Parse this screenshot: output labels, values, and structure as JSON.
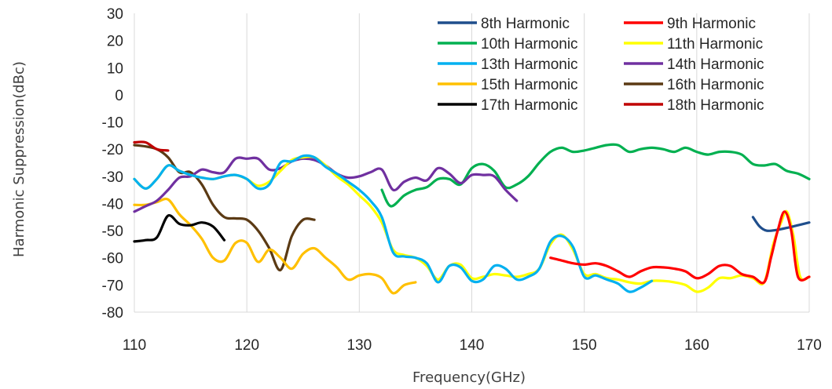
{
  "chart_data": {
    "type": "line",
    "title": "",
    "xlabel": "Frequency(GHz)",
    "ylabel": "Harmonic Suppression(dBc)",
    "xlim": [
      110,
      170
    ],
    "ylim": [
      -80,
      30
    ],
    "xticks": [
      110,
      120,
      130,
      140,
      150,
      160,
      170
    ],
    "yticks": [
      30,
      20,
      10,
      0,
      -10,
      -20,
      -30,
      -40,
      -50,
      -60,
      -70,
      -80
    ],
    "grid": "vertical",
    "legend_position": "top-right",
    "series": [
      {
        "name": "8th Harmonic",
        "color": "#1f4e8c",
        "points": [
          [
            165,
            -45
          ],
          [
            165.6,
            -48.5
          ],
          [
            166.2,
            -50
          ],
          [
            167,
            -49.8
          ],
          [
            168,
            -49
          ],
          [
            169,
            -48
          ],
          [
            170,
            -47
          ]
        ]
      },
      {
        "name": "9th Harmonic",
        "color": "#ff0000",
        "points": [
          [
            147,
            -60
          ],
          [
            148,
            -61
          ],
          [
            149,
            -62
          ],
          [
            150,
            -62.5
          ],
          [
            151,
            -62
          ],
          [
            152,
            -63
          ],
          [
            153,
            -65
          ],
          [
            154,
            -67
          ],
          [
            155,
            -65
          ],
          [
            156,
            -63.5
          ],
          [
            157,
            -63.5
          ],
          [
            158,
            -64
          ],
          [
            159,
            -65
          ],
          [
            160,
            -67.5
          ],
          [
            161,
            -66
          ],
          [
            162,
            -63
          ],
          [
            163,
            -63
          ],
          [
            164,
            -66
          ],
          [
            165,
            -67
          ],
          [
            166,
            -69
          ],
          [
            166.6,
            -60
          ],
          [
            167.2,
            -50
          ],
          [
            167.8,
            -43
          ],
          [
            168.4,
            -50
          ],
          [
            169,
            -67
          ],
          [
            170,
            -67
          ]
        ]
      },
      {
        "name": "10th Harmonic",
        "color": "#00b050",
        "points": [
          [
            132,
            -35
          ],
          [
            132.8,
            -41
          ],
          [
            134,
            -37
          ],
          [
            135,
            -35
          ],
          [
            136,
            -34
          ],
          [
            137,
            -31
          ],
          [
            138,
            -31
          ],
          [
            139,
            -33
          ],
          [
            140,
            -27
          ],
          [
            141,
            -25.5
          ],
          [
            142,
            -28
          ],
          [
            143,
            -34
          ],
          [
            144,
            -33
          ],
          [
            145,
            -30
          ],
          [
            146,
            -25
          ],
          [
            147,
            -21
          ],
          [
            148,
            -19.5
          ],
          [
            149,
            -21
          ],
          [
            150,
            -20.5
          ],
          [
            151,
            -19.5
          ],
          [
            152,
            -18.5
          ],
          [
            153,
            -18.5
          ],
          [
            154,
            -21
          ],
          [
            155,
            -20
          ],
          [
            156,
            -19.5
          ],
          [
            157,
            -20
          ],
          [
            158,
            -21
          ],
          [
            159,
            -19.5
          ],
          [
            160,
            -21
          ],
          [
            161,
            -22
          ],
          [
            162,
            -21
          ],
          [
            163,
            -21
          ],
          [
            164,
            -22
          ],
          [
            165,
            -25.5
          ],
          [
            166,
            -26
          ],
          [
            167,
            -25.5
          ],
          [
            168,
            -28
          ],
          [
            169,
            -29
          ],
          [
            170,
            -31
          ]
        ]
      },
      {
        "name": "11th Harmonic",
        "color": "#ffff00",
        "points": [
          [
            110,
            -31
          ],
          [
            111,
            -34.5
          ],
          [
            112,
            -31
          ],
          [
            113,
            -26
          ],
          [
            114,
            -28
          ],
          [
            115,
            -29.5
          ],
          [
            116,
            -30.5
          ],
          [
            117,
            -31
          ],
          [
            118,
            -30
          ],
          [
            119,
            -29.5
          ],
          [
            120,
            -31
          ],
          [
            121,
            -33.5
          ],
          [
            122,
            -32
          ],
          [
            123,
            -28
          ],
          [
            124,
            -24
          ],
          [
            125,
            -23
          ],
          [
            126,
            -23
          ],
          [
            127,
            -26
          ],
          [
            128,
            -30
          ],
          [
            129,
            -33
          ],
          [
            130,
            -37
          ],
          [
            131,
            -41
          ],
          [
            132,
            -47
          ],
          [
            133,
            -57
          ],
          [
            134,
            -59
          ],
          [
            135,
            -60
          ],
          [
            136,
            -63
          ],
          [
            137,
            -68
          ],
          [
            138,
            -63
          ],
          [
            139,
            -62.5
          ],
          [
            140,
            -67.5
          ],
          [
            141,
            -67
          ],
          [
            142,
            -66
          ],
          [
            143,
            -66.5
          ],
          [
            144,
            -67
          ],
          [
            145,
            -66
          ],
          [
            146,
            -64
          ],
          [
            147,
            -55
          ],
          [
            148,
            -51.5
          ],
          [
            149,
            -57
          ],
          [
            150,
            -66
          ],
          [
            151,
            -66
          ],
          [
            152,
            -67.5
          ],
          [
            153,
            -68
          ],
          [
            154,
            -69
          ],
          [
            155,
            -69.5
          ],
          [
            156,
            -68.5
          ],
          [
            157,
            -68.5
          ],
          [
            158,
            -69
          ],
          [
            159,
            -70
          ],
          [
            160,
            -72.5
          ],
          [
            161,
            -71
          ],
          [
            162,
            -67.5
          ],
          [
            163,
            -67.5
          ],
          [
            164,
            -66.5
          ],
          [
            165,
            -67.5
          ],
          [
            166,
            -69
          ],
          [
            166.8,
            -55
          ],
          [
            167.5,
            -47
          ],
          [
            168,
            -43
          ],
          [
            168.6,
            -52
          ],
          [
            169.2,
            -67
          ],
          [
            170,
            -67
          ]
        ]
      },
      {
        "name": "13th Harmonic",
        "color": "#00b0f0",
        "points": [
          [
            110,
            -31
          ],
          [
            111,
            -34.5
          ],
          [
            112,
            -31
          ],
          [
            113,
            -26
          ],
          [
            114,
            -28
          ],
          [
            115,
            -29.5
          ],
          [
            116,
            -30.5
          ],
          [
            117,
            -31
          ],
          [
            118,
            -30
          ],
          [
            119,
            -29.5
          ],
          [
            120,
            -31
          ],
          [
            121,
            -34.5
          ],
          [
            122,
            -33
          ],
          [
            123,
            -25
          ],
          [
            124,
            -24.5
          ],
          [
            125,
            -22.5
          ],
          [
            126,
            -23
          ],
          [
            127,
            -26.5
          ],
          [
            128,
            -29
          ],
          [
            129,
            -32
          ],
          [
            130,
            -35
          ],
          [
            131,
            -39
          ],
          [
            132,
            -45
          ],
          [
            133,
            -58
          ],
          [
            134,
            -59.5
          ],
          [
            135,
            -60
          ],
          [
            136,
            -62
          ],
          [
            137,
            -69
          ],
          [
            138,
            -63
          ],
          [
            139,
            -63.5
          ],
          [
            140,
            -68.5
          ],
          [
            141,
            -68
          ],
          [
            142,
            -63
          ],
          [
            143,
            -64
          ],
          [
            144,
            -68
          ],
          [
            145,
            -67
          ],
          [
            146,
            -64
          ],
          [
            147,
            -54
          ],
          [
            148,
            -52
          ],
          [
            149,
            -56
          ],
          [
            150,
            -67
          ],
          [
            151,
            -66.5
          ],
          [
            152,
            -68
          ],
          [
            153,
            -69.5
          ],
          [
            154,
            -72.5
          ],
          [
            155,
            -71
          ],
          [
            156,
            -68.5
          ]
        ]
      },
      {
        "name": "14th Harmonic",
        "color": "#7030a0",
        "points": [
          [
            110,
            -43
          ],
          [
            111,
            -41
          ],
          [
            112,
            -39
          ],
          [
            113,
            -35
          ],
          [
            114,
            -30.5
          ],
          [
            115,
            -30
          ],
          [
            116,
            -27.5
          ],
          [
            117,
            -28.5
          ],
          [
            118,
            -28.5
          ],
          [
            119,
            -23.5
          ],
          [
            120,
            -23.5
          ],
          [
            121,
            -23.5
          ],
          [
            122,
            -27.5
          ],
          [
            123,
            -27
          ],
          [
            124,
            -24.5
          ],
          [
            125,
            -23.5
          ],
          [
            126,
            -24
          ],
          [
            127,
            -26
          ],
          [
            128,
            -29
          ],
          [
            129,
            -30.5
          ],
          [
            130,
            -30
          ],
          [
            131,
            -28.5
          ],
          [
            132,
            -27.5
          ],
          [
            133,
            -35
          ],
          [
            134,
            -32
          ],
          [
            135,
            -30.5
          ],
          [
            136,
            -31.5
          ],
          [
            137,
            -27
          ],
          [
            138,
            -29
          ],
          [
            139,
            -32.5
          ],
          [
            140,
            -29.5
          ],
          [
            141,
            -29.5
          ],
          [
            142,
            -30
          ],
          [
            143,
            -35
          ],
          [
            144,
            -39
          ]
        ]
      },
      {
        "name": "15th Harmonic",
        "color": "#ffc000",
        "points": [
          [
            110,
            -40.5
          ],
          [
            111,
            -40.5
          ],
          [
            112,
            -39.5
          ],
          [
            113,
            -38.5
          ],
          [
            114,
            -44
          ],
          [
            115,
            -48
          ],
          [
            116,
            -53
          ],
          [
            117,
            -60
          ],
          [
            118,
            -61
          ],
          [
            119,
            -54.5
          ],
          [
            120,
            -54.5
          ],
          [
            121,
            -61.5
          ],
          [
            122,
            -57
          ],
          [
            123,
            -60
          ],
          [
            124,
            -64
          ],
          [
            125,
            -58.5
          ],
          [
            126,
            -56.5
          ],
          [
            127,
            -60
          ],
          [
            128,
            -63.5
          ],
          [
            129,
            -68
          ],
          [
            130,
            -66.5
          ],
          [
            131,
            -66
          ],
          [
            132,
            -67.5
          ],
          [
            133,
            -73
          ],
          [
            134,
            -70
          ],
          [
            135,
            -69
          ]
        ]
      },
      {
        "name": "16th Harmonic",
        "color": "#5b3a14",
        "points": [
          [
            110,
            -18.5
          ],
          [
            111,
            -19
          ],
          [
            112,
            -20
          ],
          [
            113,
            -23
          ],
          [
            114,
            -28.5
          ],
          [
            115,
            -28.5
          ],
          [
            116,
            -33
          ],
          [
            117,
            -40.5
          ],
          [
            118,
            -45
          ],
          [
            119,
            -45.5
          ],
          [
            120,
            -46
          ],
          [
            121,
            -50
          ],
          [
            122,
            -56.5
          ],
          [
            123,
            -64.5
          ],
          [
            124,
            -52
          ],
          [
            125,
            -46
          ],
          [
            126,
            -46
          ]
        ]
      },
      {
        "name": "17th Harmonic",
        "color": "#000000",
        "points": [
          [
            110,
            -54
          ],
          [
            111,
            -53.5
          ],
          [
            112,
            -52.5
          ],
          [
            113,
            -44.5
          ],
          [
            114,
            -47.5
          ],
          [
            115,
            -48
          ],
          [
            116,
            -47
          ],
          [
            117,
            -48.5
          ],
          [
            118,
            -53.5
          ]
        ]
      },
      {
        "name": "18th Harmonic",
        "color": "#c00000",
        "points": [
          [
            110,
            -17.5
          ],
          [
            111,
            -17.5
          ],
          [
            112,
            -20
          ],
          [
            113,
            -20.5
          ]
        ]
      }
    ]
  }
}
